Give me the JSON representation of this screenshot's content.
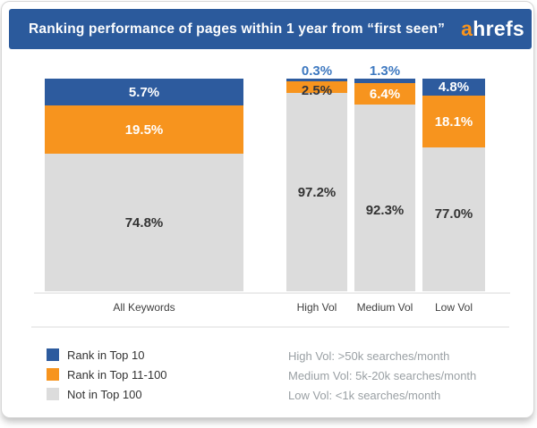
{
  "header": {
    "title": "Ranking performance of pages within 1 year from “first seen”",
    "logo_accent": "a",
    "logo_rest": "hrefs"
  },
  "chart_data": {
    "type": "bar",
    "stacked": true,
    "unit": "%",
    "title": "Ranking performance of pages within 1 year from “first seen”",
    "categories": [
      "All Keywords",
      "High Vol",
      "Medium Vol",
      "Low Vol"
    ],
    "series": [
      {
        "name": "Rank in Top 10",
        "color": "#2d5b9e",
        "values": [
          5.7,
          0.3,
          1.3,
          4.8
        ]
      },
      {
        "name": "Rank in Top 11-100",
        "color": "#f7941e",
        "values": [
          19.5,
          2.5,
          6.4,
          18.1
        ]
      },
      {
        "name": "Not in Top 100",
        "color": "#dcdcdc",
        "values": [
          74.8,
          97.2,
          92.3,
          77.0
        ]
      }
    ],
    "ylim": [
      0,
      100
    ],
    "grid": false,
    "legend_position": "bottom-left"
  },
  "bars": [
    {
      "category": "All Keywords",
      "top10": "5.7%",
      "top11": "19.5%",
      "not100": "74.8%"
    },
    {
      "category": "High Vol",
      "top10": "0.3%",
      "top11": "2.5%",
      "not100": "97.2%"
    },
    {
      "category": "Medium Vol",
      "top10": "1.3%",
      "top11": "6.4%",
      "not100": "92.3%"
    },
    {
      "category": "Low Vol",
      "top10": "4.8%",
      "top11": "18.1%",
      "not100": "77.0%"
    }
  ],
  "legend": {
    "items": [
      {
        "label": "Rank in Top 10",
        "color": "#2d5b9e"
      },
      {
        "label": "Rank in Top 11-100",
        "color": "#f7941e"
      },
      {
        "label": "Not in Top 100",
        "color": "#dcdcdc"
      }
    ]
  },
  "notes": [
    "High Vol: >50k searches/month",
    "Medium Vol: 5k-20k searches/month",
    "Low Vol: <1k searches/month"
  ],
  "colors": {
    "header_bg": "#2b5a9c",
    "top10": "#2d5b9e",
    "top11": "#f7941e",
    "not100": "#dcdcdc",
    "above_bar_label": "#3d78c0",
    "logo_accent": "#f7941e"
  }
}
